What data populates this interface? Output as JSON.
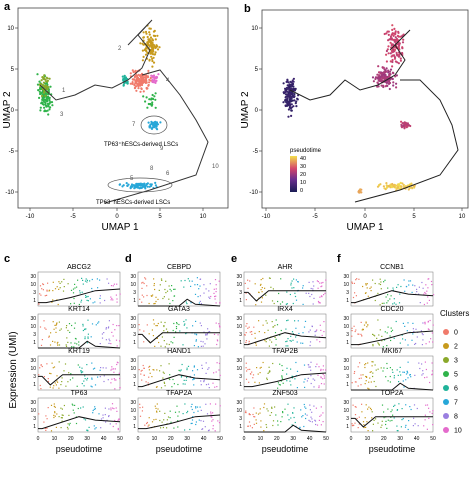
{
  "panel_letters": [
    "a",
    "b",
    "c",
    "d",
    "e",
    "f"
  ],
  "umap": {
    "xlabel": "UMAP 1",
    "ylabel": "UMAP 2",
    "xticks": [
      "-10",
      "-5",
      "0",
      "5",
      "10"
    ],
    "yticks": [
      "10",
      "5",
      "0",
      "-5",
      "-10"
    ],
    "annotations": {
      "upper": "TP63⁺hESCs-derived LSCs",
      "lower": "TP63⁻hESCs-derived LSCs"
    },
    "cluster_numbers_a": [
      "1",
      "2",
      "3",
      "4",
      "5",
      "6",
      "7",
      "8",
      "9",
      "10"
    ],
    "legend_title": "pseudotime",
    "legend_ticks": [
      "40",
      "30",
      "20",
      "10",
      "0"
    ]
  },
  "expression": {
    "ylabel": "Expression (UMI)",
    "xlabel": "pseudotime",
    "xticks": [
      "0",
      "10",
      "20",
      "30",
      "40",
      "50"
    ],
    "yticks": [
      "30",
      "10",
      "3",
      "1"
    ],
    "columns": [
      {
        "id": "c",
        "genes": [
          "ABCG2",
          "KRT14",
          "KRT19",
          "TP63"
        ]
      },
      {
        "id": "d",
        "genes": [
          "CEBPD",
          "GATA3",
          "HAND1",
          "TFAP2A"
        ]
      },
      {
        "id": "e",
        "genes": [
          "AHR",
          "IRX4",
          "TFAP2B",
          "ZNF503"
        ]
      },
      {
        "id": "f",
        "genes": [
          "CCNB1",
          "CDC20",
          "MKI67",
          "TOP2A"
        ]
      }
    ]
  },
  "clusters_legend": {
    "title": "Clusters",
    "items": [
      {
        "label": "0",
        "color": "#f07a6b"
      },
      {
        "label": "2",
        "color": "#c79a1c"
      },
      {
        "label": "3",
        "color": "#8aa82a"
      },
      {
        "label": "5",
        "color": "#2fb34a"
      },
      {
        "label": "6",
        "color": "#20b39a"
      },
      {
        "label": "7",
        "color": "#27a7d8"
      },
      {
        "label": "8",
        "color": "#9a7fe0"
      },
      {
        "label": "10",
        "color": "#e46bcc"
      }
    ]
  }
}
